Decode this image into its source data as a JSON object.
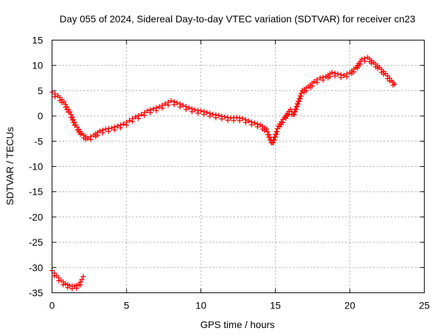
{
  "chart_data": {
    "type": "scatter",
    "title": "Day 055 of 2024, Sidereal Day-to-day VTEC variation (SDTVAR) for receiver cn23",
    "xlabel": "GPS time / hours",
    "ylabel": "SDTVAR / TECUs",
    "xlim": [
      0,
      25
    ],
    "ylim": [
      -35,
      15
    ],
    "xticks": [
      "0",
      "5",
      "10",
      "15",
      "20",
      "25"
    ],
    "yticks": [
      "15",
      "10",
      "5",
      "0",
      "-5",
      "-10",
      "-15",
      "-20",
      "-25",
      "-30",
      "-35"
    ],
    "grid": true,
    "marker": "plus",
    "color": "#ff0000",
    "series": [
      {
        "name": "sdtvar-main-trace",
        "points": [
          [
            0.0,
            4.7
          ],
          [
            0.4,
            4.0
          ],
          [
            0.8,
            2.8
          ],
          [
            1.2,
            0.8
          ],
          [
            1.6,
            -1.8
          ],
          [
            2.0,
            -3.5
          ],
          [
            2.4,
            -4.4
          ],
          [
            2.8,
            -3.8
          ],
          [
            3.2,
            -3.0
          ],
          [
            3.6,
            -2.6
          ],
          [
            4.0,
            -2.4
          ],
          [
            4.4,
            -2.0
          ],
          [
            4.8,
            -1.6
          ],
          [
            5.2,
            -0.9
          ],
          [
            5.6,
            -0.2
          ],
          [
            6.0,
            0.3
          ],
          [
            6.4,
            1.0
          ],
          [
            6.8,
            1.4
          ],
          [
            7.2,
            1.8
          ],
          [
            7.6,
            2.4
          ],
          [
            8.0,
            3.0
          ],
          [
            8.4,
            2.6
          ],
          [
            8.8,
            2.1
          ],
          [
            9.2,
            1.6
          ],
          [
            9.6,
            1.2
          ],
          [
            10.0,
            1.0
          ],
          [
            10.4,
            0.7
          ],
          [
            10.8,
            0.3
          ],
          [
            11.2,
            0.1
          ],
          [
            11.6,
            -0.2
          ],
          [
            12.0,
            -0.4
          ],
          [
            12.4,
            -0.3
          ],
          [
            12.8,
            -0.5
          ],
          [
            13.2,
            -1.0
          ],
          [
            13.6,
            -1.4
          ],
          [
            14.0,
            -1.8
          ],
          [
            14.4,
            -2.6
          ],
          [
            14.8,
            -5.3
          ],
          [
            15.2,
            -2.0
          ],
          [
            15.6,
            -0.3
          ],
          [
            16.0,
            1.3
          ],
          [
            16.2,
            0.3
          ],
          [
            16.8,
            5.0
          ],
          [
            17.2,
            5.8
          ],
          [
            17.6,
            6.8
          ],
          [
            18.0,
            7.5
          ],
          [
            18.4,
            7.8
          ],
          [
            18.8,
            8.6
          ],
          [
            19.2,
            8.3
          ],
          [
            19.6,
            8.0
          ],
          [
            20.0,
            8.6
          ],
          [
            20.4,
            9.6
          ],
          [
            20.8,
            11.2
          ],
          [
            21.2,
            11.6
          ],
          [
            21.6,
            10.6
          ],
          [
            22.0,
            9.6
          ],
          [
            22.4,
            8.4
          ],
          [
            22.8,
            7.0
          ],
          [
            23.0,
            6.3
          ]
        ]
      },
      {
        "name": "sdtvar-low-trace",
        "points": [
          [
            0.0,
            -30.6
          ],
          [
            0.3,
            -31.6
          ],
          [
            0.6,
            -32.5
          ],
          [
            0.9,
            -33.2
          ],
          [
            1.2,
            -33.6
          ],
          [
            1.5,
            -33.7
          ],
          [
            1.8,
            -33.4
          ],
          [
            2.0,
            -32.4
          ],
          [
            2.1,
            -31.8
          ]
        ]
      }
    ]
  }
}
